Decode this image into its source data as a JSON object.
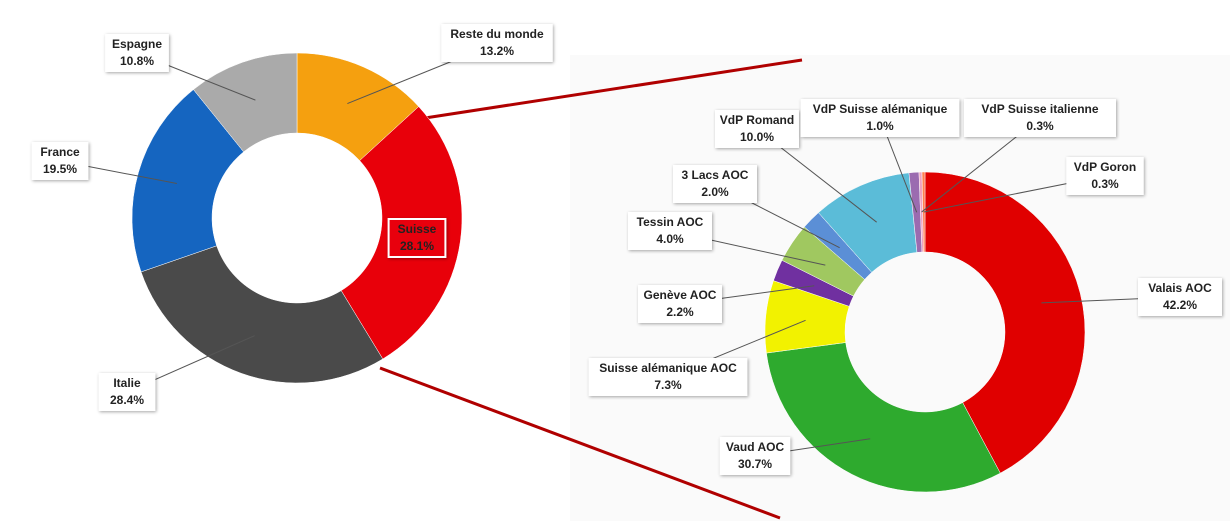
{
  "chart_data": [
    {
      "type": "donut",
      "categories": [
        "Reste du monde",
        "Suisse",
        "Italie",
        "France",
        "Espagne"
      ],
      "values": [
        13.2,
        28.1,
        28.4,
        19.5,
        10.8
      ],
      "value_labels": [
        "13.2%",
        "28.1%",
        "28.4%",
        "19.5%",
        "10.8%"
      ],
      "colors": [
        "#f5a00f",
        "#e8000a",
        "#4a4a4a",
        "#1565c0",
        "#aaaaaa"
      ]
    },
    {
      "type": "donut",
      "categories": [
        "Valais AOC",
        "Vaud AOC",
        "Suisse alémanique AOC",
        "Genève AOC",
        "Tessin AOC",
        "3 Lacs AOC",
        "VdP Romand",
        "VdP Suisse alémanique",
        "VdP Suisse italienne",
        "VdP Goron"
      ],
      "values": [
        42.2,
        30.7,
        7.3,
        2.2,
        4.0,
        2.0,
        10.0,
        1.0,
        0.3,
        0.3
      ],
      "value_labels": [
        "42.2%",
        "30.7%",
        "7.3%",
        "2.2%",
        "4.0%",
        "2.0%",
        "10.0%",
        "1.0%",
        "0.3%",
        "0.3%"
      ],
      "colors": [
        "#e00000",
        "#2eaa2e",
        "#f2f200",
        "#7030a0",
        "#a0c860",
        "#5b8fd6",
        "#5bbcd8",
        "#9b6bb0",
        "#f0a0c0",
        "#ff7f50"
      ]
    }
  ]
}
